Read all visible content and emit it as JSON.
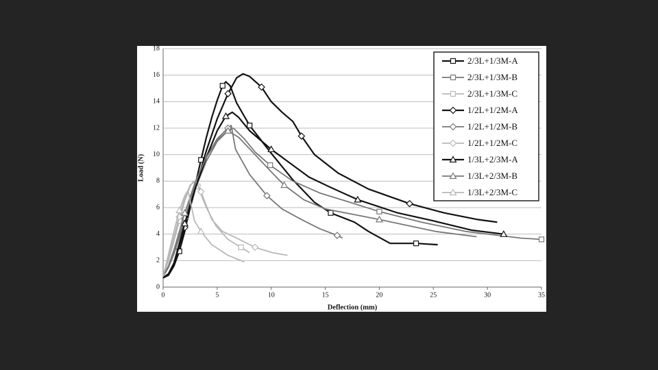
{
  "chart_data": {
    "type": "line",
    "x_label": "Deflection (mm)",
    "y_label": "Load (N)",
    "xlim": [
      0,
      35
    ],
    "ylim": [
      0,
      18
    ],
    "xticks": [
      0,
      5,
      10,
      15,
      20,
      25,
      30,
      35
    ],
    "yticks": [
      0,
      2,
      4,
      6,
      8,
      10,
      12,
      14,
      16,
      18
    ],
    "grid": true,
    "legend": "upper right",
    "series": [
      {
        "name": "2/3L+1/3M-A",
        "color": "#111111",
        "marker": "square",
        "x": [
          0,
          0.5,
          1,
          1.5,
          2,
          2.5,
          3,
          3.5,
          4,
          4.5,
          5,
          5.5,
          5.8,
          6.2,
          6.8,
          8,
          10,
          12,
          14,
          15.5,
          17.7,
          19,
          21,
          23.4,
          25.4
        ],
        "values": [
          0.7,
          0.9,
          1.6,
          2.7,
          4.2,
          6,
          7.8,
          9.6,
          11.3,
          12.8,
          14.1,
          15.2,
          15.5,
          15.2,
          13.9,
          12.2,
          10.1,
          8.1,
          6.4,
          5.6,
          4.9,
          4.2,
          3.3,
          3.3,
          3.2
        ]
      },
      {
        "name": "2/3L+1/3M-B",
        "color": "#777777",
        "marker": "square",
        "x": [
          0,
          0.5,
          1,
          2,
          3,
          4,
          5,
          6,
          6.5,
          7.5,
          8.5,
          9.9,
          12,
          14.5,
          16.9,
          20,
          23.9,
          28,
          33.1,
          35
        ],
        "values": [
          0.8,
          1.5,
          2.5,
          5,
          7.5,
          9.5,
          11,
          11.8,
          12,
          11.2,
          10.2,
          9.2,
          8,
          7.1,
          6.5,
          5.7,
          4.9,
          4.2,
          3.7,
          3.6
        ]
      },
      {
        "name": "2/3L+1/3M-C",
        "color": "#b8b8b8",
        "marker": "square",
        "x": [
          0,
          0.5,
          1,
          1.5,
          2,
          2.5,
          2.8,
          3.2,
          4,
          4.9,
          6,
          7.2,
          8
        ],
        "values": [
          0.8,
          2,
          3.5,
          5,
          6.5,
          7.6,
          8,
          7.6,
          6,
          4.6,
          3.6,
          3,
          2.6
        ]
      },
      {
        "name": "1/2L+1/2M-A",
        "color": "#111111",
        "marker": "diamond",
        "x": [
          0,
          0.5,
          1,
          2,
          3,
          4,
          5,
          6,
          6.8,
          7.4,
          8,
          9.1,
          10,
          11,
          12,
          12.8,
          14,
          16.2,
          19,
          22.8,
          26,
          29.1,
          30.9
        ],
        "values": [
          0.7,
          1,
          1.8,
          4.5,
          7.5,
          10.3,
          12.7,
          14.6,
          15.8,
          16.1,
          15.9,
          15.1,
          14,
          13.2,
          12.5,
          11.4,
          10,
          8.6,
          7.4,
          6.3,
          5.6,
          5.1,
          4.9
        ]
      },
      {
        "name": "1/2L+1/2M-B",
        "color": "#777777",
        "marker": "diamond",
        "x": [
          0,
          0.5,
          1,
          2,
          3,
          4,
          5,
          6,
          6.3,
          6.7,
          8,
          9.6,
          11,
          12.8,
          14.5,
          16.1,
          16.6
        ],
        "values": [
          0.8,
          1.5,
          2.6,
          5.2,
          7.8,
          9.8,
          11.2,
          12,
          12.2,
          10.4,
          8.5,
          6.9,
          5.9,
          5.1,
          4.4,
          3.9,
          3.7
        ]
      },
      {
        "name": "1/2L+1/2M-C",
        "color": "#b8b8b8",
        "marker": "diamond",
        "x": [
          0,
          0.5,
          1,
          1.5,
          2,
          2.5,
          3,
          3.5,
          4.5,
          5.5,
          6.8,
          8.5,
          10.1,
          11.5
        ],
        "values": [
          0.8,
          2.2,
          3.8,
          5.3,
          6.7,
          7.7,
          8,
          7.2,
          5.1,
          4.2,
          3.7,
          3,
          2.6,
          2.4
        ]
      },
      {
        "name": "1/3L+2/3M-A",
        "color": "#111111",
        "marker": "triangle",
        "x": [
          0,
          0.5,
          1,
          2,
          3,
          4,
          5,
          5.8,
          6.4,
          7,
          8,
          10,
          12,
          13.5,
          15.3,
          18,
          21.7,
          25,
          28.5,
          31.5
        ],
        "values": [
          0.7,
          1,
          1.8,
          4.8,
          7.5,
          9.8,
          11.8,
          12.9,
          13.2,
          12.8,
          11.8,
          10.4,
          9.2,
          8.3,
          7.6,
          6.6,
          5.6,
          5,
          4.3,
          4
        ]
      },
      {
        "name": "1/3L+2/3M-B",
        "color": "#777777",
        "marker": "triangle",
        "x": [
          0,
          0.5,
          1,
          2,
          3,
          4,
          5,
          6,
          7,
          8.5,
          10,
          11.2,
          13,
          15,
          17.5,
          20,
          25.2,
          29
        ],
        "values": [
          0.8,
          1.6,
          2.8,
          5.6,
          8,
          9.8,
          11.1,
          11.8,
          11.3,
          10,
          8.7,
          7.7,
          6.6,
          5.9,
          5.5,
          5.1,
          4.2,
          3.8
        ]
      },
      {
        "name": "1/3L+2/3M-C",
        "color": "#b8b8b8",
        "marker": "triangle",
        "x": [
          0,
          0.5,
          1,
          1.5,
          2,
          2.3,
          2.9,
          3.5,
          4.5,
          6,
          7.5
        ],
        "values": [
          0.8,
          2.5,
          4.2,
          5.8,
          6.9,
          7.3,
          5,
          4.2,
          3.2,
          2.4,
          1.9
        ]
      }
    ]
  }
}
